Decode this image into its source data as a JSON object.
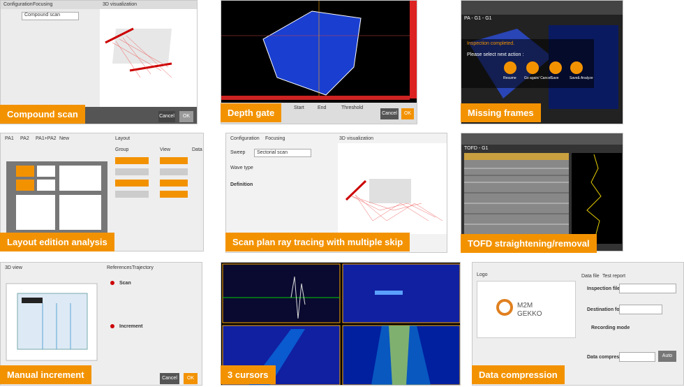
{
  "tiles": [
    {
      "label": "Compound scan",
      "texts": [
        "Configuration",
        "Focusing",
        "3D visualization",
        "Compound scan",
        "Cancel",
        "OK"
      ]
    },
    {
      "label": "Depth gate",
      "texts": [
        "Start",
        "End",
        "Threshold",
        "Cancel",
        "OK"
      ]
    },
    {
      "label": "Missing frames",
      "texts": [
        "PA - G1 - G1",
        "Inspection completed.",
        "Please select next action :",
        "Resume",
        "Go again/ Cancel",
        "Save",
        "Save& Analyze"
      ]
    },
    {
      "label": "Layout edition analysis",
      "texts": [
        "PA1",
        "PA2",
        "PA1+PA2",
        "New",
        "Layout",
        "Group",
        "View",
        "Data"
      ]
    },
    {
      "label": "Scan plan ray tracing with multiple skip",
      "texts": [
        "Configuration",
        "Focusing",
        "3D visualization",
        "Sweep",
        "Sectorial scan",
        "Wave type",
        "Definition"
      ]
    },
    {
      "label": "TOFD straightening/removal",
      "texts": [
        "TOFD - G1"
      ]
    },
    {
      "label": "Manual increment",
      "texts": [
        "3D view",
        "References",
        "Trajectory",
        "Scan",
        "Increment",
        "Cancel",
        "OK"
      ]
    },
    {
      "label": "3 cursors",
      "texts": []
    },
    {
      "label": "Data compression",
      "texts": [
        "Logo",
        "Data file",
        "Test report",
        "M2M",
        "GEKKO",
        "Inspection file name",
        "Destination folder",
        "Recording mode",
        "Data compression",
        "Auto"
      ]
    }
  ]
}
